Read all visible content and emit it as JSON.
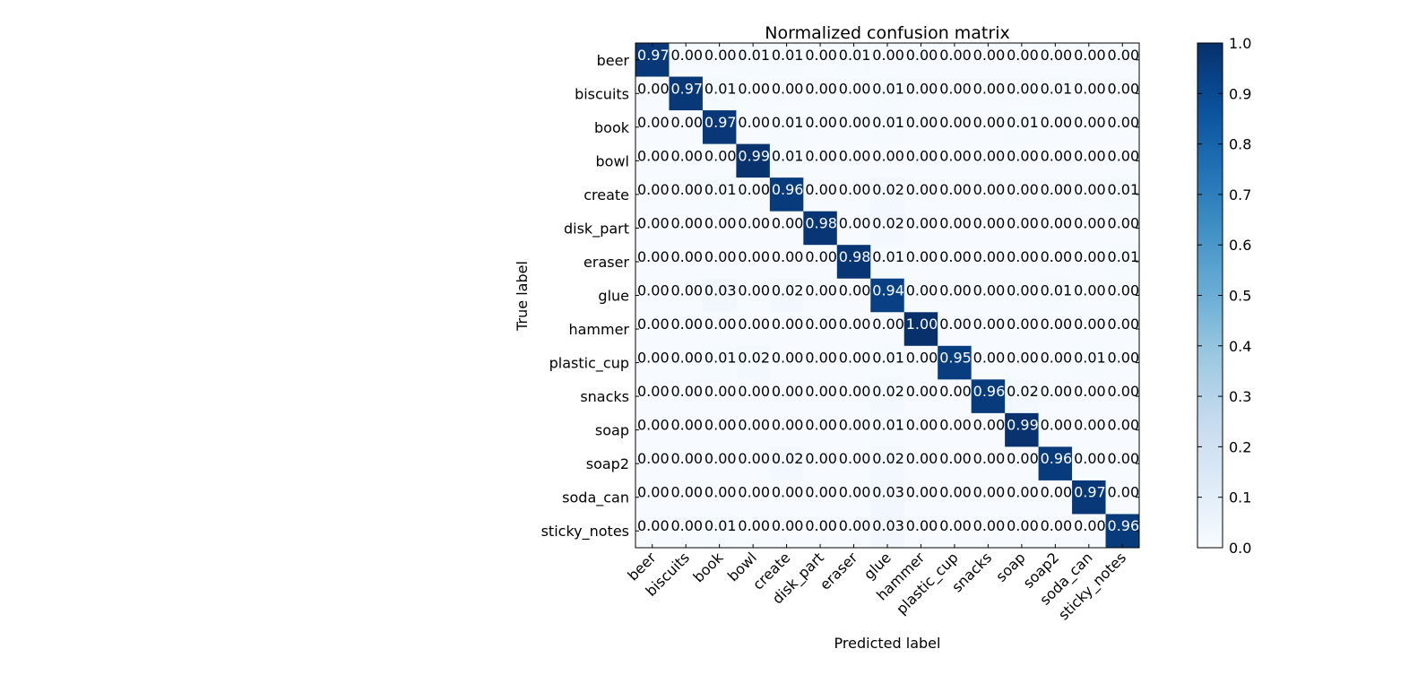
{
  "chart_data": {
    "type": "heatmap",
    "title": "Normalized confusion matrix",
    "xlabel": "Predicted label",
    "ylabel": "True label",
    "labels": [
      "beer",
      "biscuits",
      "book",
      "bowl",
      "create",
      "disk_part",
      "eraser",
      "glue",
      "hammer",
      "plastic_cup",
      "snacks",
      "soap",
      "soap2",
      "soda_can",
      "sticky_notes"
    ],
    "values": [
      [
        0.97,
        0.0,
        0.0,
        0.01,
        0.01,
        0.0,
        0.01,
        0.0,
        0.0,
        0.0,
        0.0,
        0.0,
        0.0,
        0.0,
        0.0
      ],
      [
        0.0,
        0.97,
        0.01,
        0.0,
        0.0,
        0.0,
        0.0,
        0.01,
        0.0,
        0.0,
        0.0,
        0.0,
        0.01,
        0.0,
        0.0
      ],
      [
        0.0,
        0.0,
        0.97,
        0.0,
        0.01,
        0.0,
        0.0,
        0.01,
        0.0,
        0.0,
        0.0,
        0.01,
        0.0,
        0.0,
        0.0
      ],
      [
        0.0,
        0.0,
        0.0,
        0.99,
        0.01,
        0.0,
        0.0,
        0.0,
        0.0,
        0.0,
        0.0,
        0.0,
        0.0,
        0.0,
        0.0
      ],
      [
        0.0,
        0.0,
        0.01,
        0.0,
        0.96,
        0.0,
        0.0,
        0.02,
        0.0,
        0.0,
        0.0,
        0.0,
        0.0,
        0.0,
        0.01
      ],
      [
        0.0,
        0.0,
        0.0,
        0.0,
        0.0,
        0.98,
        0.0,
        0.02,
        0.0,
        0.0,
        0.0,
        0.0,
        0.0,
        0.0,
        0.0
      ],
      [
        0.0,
        0.0,
        0.0,
        0.0,
        0.0,
        0.0,
        0.98,
        0.01,
        0.0,
        0.0,
        0.0,
        0.0,
        0.0,
        0.0,
        0.01
      ],
      [
        0.0,
        0.0,
        0.03,
        0.0,
        0.02,
        0.0,
        0.0,
        0.94,
        0.0,
        0.0,
        0.0,
        0.0,
        0.01,
        0.0,
        0.0
      ],
      [
        0.0,
        0.0,
        0.0,
        0.0,
        0.0,
        0.0,
        0.0,
        0.0,
        1.0,
        0.0,
        0.0,
        0.0,
        0.0,
        0.0,
        0.0
      ],
      [
        0.0,
        0.0,
        0.01,
        0.02,
        0.0,
        0.0,
        0.0,
        0.01,
        0.0,
        0.95,
        0.0,
        0.0,
        0.0,
        0.01,
        0.0
      ],
      [
        0.0,
        0.0,
        0.0,
        0.0,
        0.0,
        0.0,
        0.0,
        0.02,
        0.0,
        0.0,
        0.96,
        0.02,
        0.0,
        0.0,
        0.0
      ],
      [
        0.0,
        0.0,
        0.0,
        0.0,
        0.0,
        0.0,
        0.0,
        0.01,
        0.0,
        0.0,
        0.0,
        0.99,
        0.0,
        0.0,
        0.0
      ],
      [
        0.0,
        0.0,
        0.0,
        0.0,
        0.02,
        0.0,
        0.0,
        0.02,
        0.0,
        0.0,
        0.0,
        0.0,
        0.96,
        0.0,
        0.0
      ],
      [
        0.0,
        0.0,
        0.0,
        0.0,
        0.0,
        0.0,
        0.0,
        0.03,
        0.0,
        0.0,
        0.0,
        0.0,
        0.0,
        0.97,
        0.0
      ],
      [
        0.0,
        0.0,
        0.01,
        0.0,
        0.0,
        0.0,
        0.0,
        0.03,
        0.0,
        0.0,
        0.0,
        0.0,
        0.0,
        0.0,
        0.96
      ]
    ],
    "value_format": "0.00",
    "colorbar": {
      "min": 0.0,
      "max": 1.0,
      "ticks": [
        "0.0",
        "0.1",
        "0.2",
        "0.3",
        "0.4",
        "0.5",
        "0.6",
        "0.7",
        "0.8",
        "0.9",
        "1.0"
      ],
      "colormap": "Blues",
      "low_color": "#f7fbff",
      "high_color": "#08306b"
    },
    "text_color_dark_cells": "#ffffff",
    "text_color_light_cells": "#000000",
    "grid": false
  }
}
